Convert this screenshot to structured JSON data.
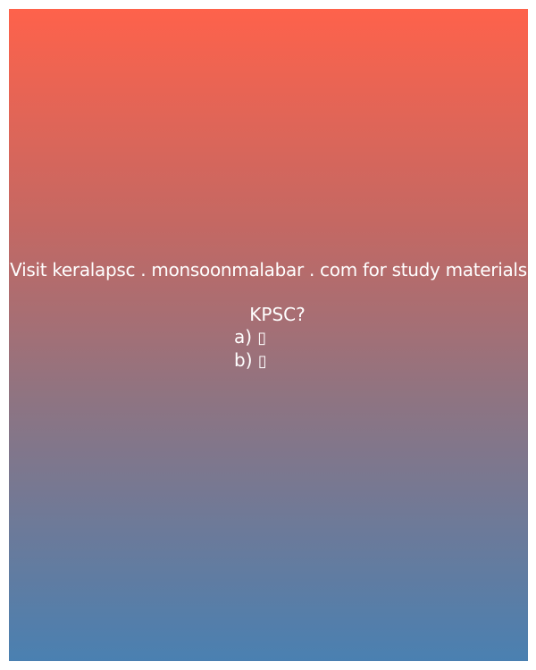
{
  "card": {
    "promo_text": "Visit keralapsc . monsoonmalabar . com for study materials",
    "question": "KPSC?",
    "options": [
      {
        "prefix": "a)",
        "text": "▯"
      },
      {
        "prefix": "b)",
        "text": "▯"
      }
    ],
    "gradient_colors": [
      "#fe624b",
      "#c46863",
      "#8e7482",
      "#4a80b1"
    ]
  }
}
